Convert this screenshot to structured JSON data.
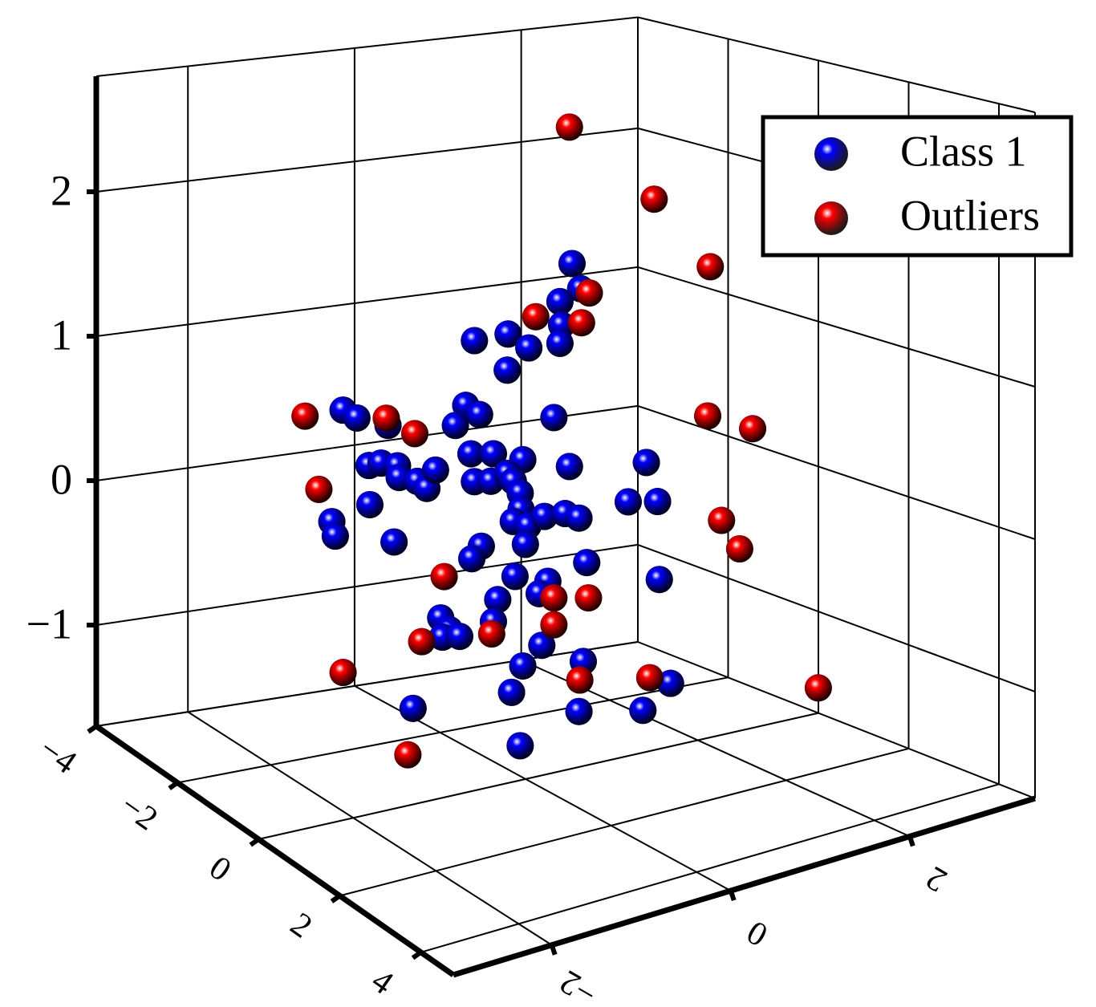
{
  "chart_data": {
    "type": "scatter3d",
    "xlim": [
      -3.1,
      3.4
    ],
    "ylim": [
      -4,
      4.8
    ],
    "zlim": [
      -1.7,
      2.8
    ],
    "xticks": [
      {
        "value": -2,
        "label": "−2"
      },
      0,
      2
    ],
    "yticks": [
      {
        "value": -4,
        "label": "−4"
      },
      {
        "value": -2,
        "label": "−2"
      },
      0,
      2,
      4
    ],
    "zticks": [
      {
        "value": -1,
        "label": "−1"
      },
      0,
      1,
      2
    ],
    "grid": true,
    "legend": "upper right",
    "series": [
      {
        "name": "Class 1",
        "color": "#0000ff",
        "x": [
          0.34,
          0.44,
          0.2,
          0.22,
          0.2,
          -0.79,
          -0.4,
          -0.16,
          -0.41,
          0.13,
          -2.31,
          -2.15,
          -1.79,
          -0.89,
          -0.73,
          -1.01,
          -0.83,
          -0.57,
          -0.23,
          0.31,
          1.2,
          -2.01,
          -1.87,
          -1.68,
          -1.66,
          -1.45,
          -1.34,
          -1.24,
          -0.79,
          -0.6,
          -0.41,
          -0.34,
          -0.26,
          -0.25,
          -0.34,
          -0.17,
          0.02,
          0.26,
          0.42,
          0.99,
          1.33,
          -2.0,
          -2.44,
          -2.4,
          -1.72,
          -0.71,
          -0.82,
          -0.2,
          0.51,
          -0.32,
          0.06,
          -0.04,
          1.35,
          -0.52,
          -1.18,
          -1.08,
          -1.16,
          -0.96,
          -0.57,
          -0.01,
          -0.23,
          0.47,
          -0.36,
          1.48,
          -1.5,
          0.42,
          1.16,
          -0.26
        ],
        "y": [
          0.4,
          0.4,
          0.4,
          0.4,
          0.4,
          0.4,
          0.4,
          0.4,
          0.4,
          0.4,
          0.4,
          0.4,
          0.4,
          0.4,
          0.4,
          0.4,
          0.4,
          0.4,
          0.4,
          0.4,
          0.4,
          0.4,
          0.4,
          0.4,
          0.4,
          0.4,
          0.4,
          0.4,
          0.4,
          0.4,
          0.4,
          0.4,
          0.4,
          0.4,
          0.4,
          0.4,
          0.4,
          0.4,
          0.4,
          0.4,
          0.4,
          0.4,
          0.4,
          0.4,
          0.4,
          0.4,
          0.4,
          0.4,
          0.4,
          0.4,
          0.4,
          0.4,
          0.4,
          0.4,
          0.4,
          0.4,
          0.4,
          0.4,
          0.4,
          0.4,
          0.4,
          0.4,
          0.4,
          0.4,
          0.4,
          0.4,
          0.4,
          0.4
        ],
        "z": [
          1.78,
          1.6,
          1.54,
          1.38,
          1.26,
          1.39,
          1.39,
          1.27,
          1.15,
          0.77,
          1.1,
          1.03,
          0.94,
          0.97,
          0.89,
          0.85,
          0.64,
          0.61,
          0.53,
          0.42,
          0.34,
          0.7,
          0.7,
          0.66,
          0.58,
          0.53,
          0.47,
          0.58,
          0.45,
          0.43,
          0.46,
          0.4,
          0.31,
          0.2,
          0.13,
          0.08,
          0.12,
          0.11,
          0.06,
          0.1,
          0.06,
          0.44,
          0.38,
          0.28,
          0.16,
          0.01,
          -0.06,
          -0.04,
          -0.25,
          -0.24,
          -0.32,
          -0.39,
          -0.47,
          -0.37,
          -0.41,
          -0.5,
          -0.54,
          -0.56,
          -0.51,
          -0.74,
          -0.85,
          -0.91,
          -1.01,
          -1.19,
          -0.97,
          -1.24,
          -1.33,
          -1.38
        ]
      },
      {
        "name": "Outliers",
        "color": "#ff0000",
        "x": [
          0.31,
          1.29,
          1.94,
          0.54,
          -0.08,
          0.45,
          -2.75,
          -1.81,
          -1.48,
          1.91,
          2.43,
          -2.59,
          2.07,
          2.28,
          -1.14,
          0.13,
          0.53,
          0.13,
          -1.4,
          -0.59,
          -2.31,
          0.43,
          1.24,
          3.19,
          -1.56
        ],
        "y": [
          0.4,
          0.4,
          0.4,
          0.4,
          0.4,
          0.4,
          0.4,
          0.4,
          0.4,
          0.4,
          0.4,
          0.4,
          0.4,
          0.4,
          0.4,
          0.4,
          0.4,
          0.4,
          0.4,
          0.4,
          0.4,
          0.4,
          0.4,
          0.4,
          0.4
        ],
        "z": [
          2.7,
          2.11,
          1.58,
          1.56,
          1.47,
          1.37,
          1.11,
          0.99,
          0.85,
          0.57,
          0.42,
          0.61,
          -0.16,
          -0.38,
          -0.14,
          -0.44,
          -0.49,
          -0.62,
          -0.54,
          -0.59,
          -0.63,
          -1.03,
          -1.12,
          -1.45,
          -1.27
        ]
      }
    ]
  }
}
